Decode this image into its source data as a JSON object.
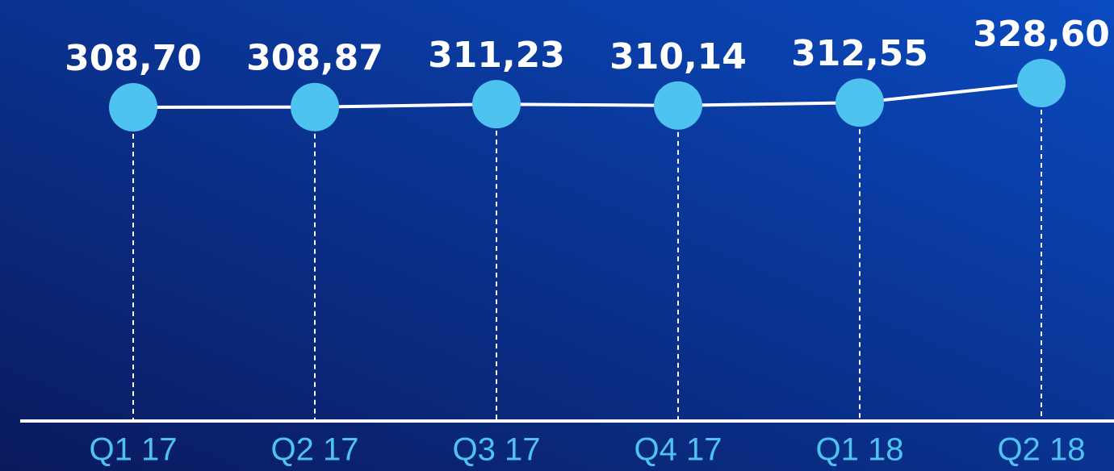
{
  "chart_data": {
    "type": "line",
    "categories": [
      "Q1 17",
      "Q2 17",
      "Q3 17",
      "Q4 17",
      "Q1 18",
      "Q2 18"
    ],
    "values": [
      308.7,
      308.87,
      311.23,
      310.14,
      312.55,
      328.6
    ],
    "value_labels": [
      "308,70",
      "308,87",
      "311,23",
      "310,14",
      "312,55",
      "328,60"
    ],
    "color": "#4fc3f0"
  }
}
